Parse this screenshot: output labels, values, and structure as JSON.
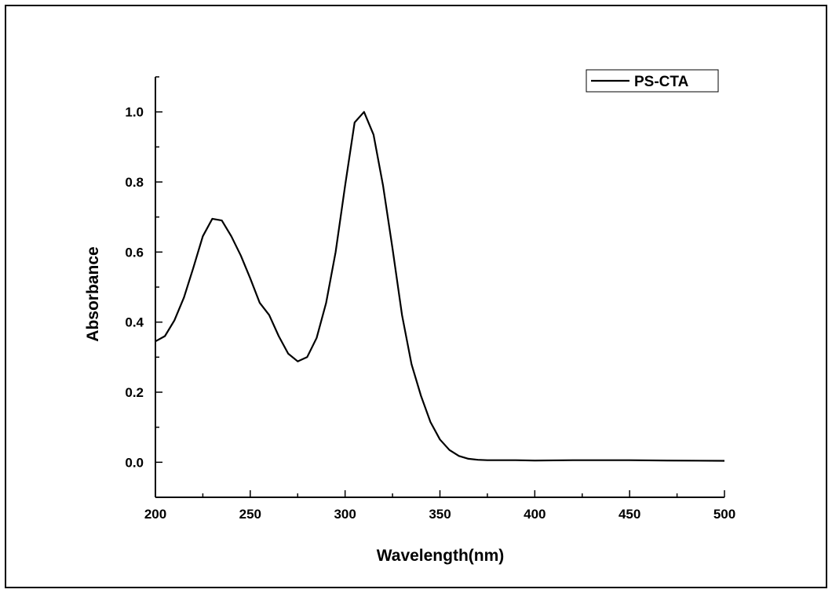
{
  "chart_data": {
    "type": "line",
    "title": "",
    "xlabel": "Wavelength(nm)",
    "ylabel": "Absorbance",
    "xlim": [
      200,
      500
    ],
    "ylim": [
      -0.1,
      1.1
    ],
    "xticks": [
      200,
      250,
      300,
      350,
      400,
      450,
      500
    ],
    "yticks": [
      0.0,
      0.2,
      0.4,
      0.6,
      0.8,
      1.0
    ],
    "xtick_labels": [
      "200",
      "250",
      "300",
      "350",
      "400",
      "450",
      "500"
    ],
    "ytick_labels": [
      "0.0",
      "0.2",
      "0.4",
      "0.6",
      "0.8",
      "1.0"
    ],
    "grid": false,
    "legend_position": "top-right",
    "series": [
      {
        "name": "PS-CTA",
        "color": "#000000",
        "x": [
          200,
          205,
          210,
          215,
          220,
          225,
          230,
          235,
          240,
          245,
          250,
          255,
          260,
          265,
          270,
          275,
          280,
          285,
          290,
          295,
          300,
          305,
          310,
          315,
          320,
          325,
          330,
          335,
          340,
          345,
          350,
          355,
          360,
          365,
          370,
          375,
          380,
          390,
          400,
          420,
          450,
          470,
          500
        ],
        "y": [
          0.345,
          0.36,
          0.405,
          0.47,
          0.555,
          0.645,
          0.695,
          0.69,
          0.645,
          0.59,
          0.525,
          0.455,
          0.42,
          0.36,
          0.31,
          0.288,
          0.3,
          0.355,
          0.455,
          0.6,
          0.79,
          0.97,
          1.0,
          0.935,
          0.79,
          0.61,
          0.42,
          0.28,
          0.19,
          0.115,
          0.065,
          0.035,
          0.018,
          0.01,
          0.007,
          0.006,
          0.006,
          0.006,
          0.005,
          0.006,
          0.006,
          0.005,
          0.004
        ]
      }
    ]
  }
}
